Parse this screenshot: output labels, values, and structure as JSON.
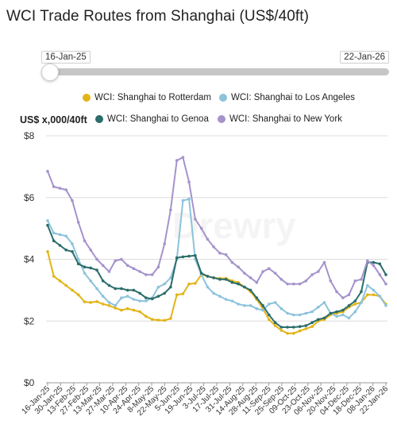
{
  "title": "WCI Trade Routes from Shanghai (US$/40ft)",
  "slider": {
    "start_label": "16-Jan-25",
    "end_label": "22-Jan-26"
  },
  "watermark": "Drewry",
  "chart_data": {
    "type": "line",
    "title": "WCI Trade Routes from Shanghai (US$/40ft)",
    "ylabel": "US$ x,000/40ft",
    "xlabel": "",
    "ylim": [
      0,
      8
    ],
    "yticks": [
      0,
      2,
      4,
      6,
      8
    ],
    "ytick_labels": [
      "$0",
      "$2",
      "$4",
      "$6",
      "$8"
    ],
    "grid": true,
    "legend": "top",
    "x_tick_labels": [
      "16-Jan-25",
      "30-Jan-25",
      "13-Feb-25",
      "27-Feb-25",
      "13-Mar-25",
      "27-Mar-25",
      "10-Apr-25",
      "24-Apr-25",
      "8-May-25",
      "22-May-25",
      "5-Jun-25",
      "19-Jun-25",
      "3-Jul-25",
      "17-Jul-25",
      "31-Jul-25",
      "14-Aug-25",
      "28-Aug-25",
      "11-Sep-25",
      "25-Sep-25",
      "09-Oct-25",
      "23-Oct-25",
      "06-Nov-25",
      "20-Nov-25",
      "04-Dec-25",
      "18-Dec-25",
      "08-Jan-26",
      "22-Jan-26"
    ],
    "series": [
      {
        "name": "WCI: Shanghai to Rotterdam",
        "color": "#e3b417",
        "values": [
          4.25,
          3.45,
          3.3,
          3.15,
          3.0,
          2.85,
          2.62,
          2.6,
          2.63,
          2.55,
          2.5,
          2.42,
          2.35,
          2.4,
          2.35,
          2.3,
          2.15,
          2.05,
          2.03,
          2.02,
          2.08,
          2.85,
          2.88,
          3.2,
          3.22,
          3.5,
          3.45,
          3.4,
          3.38,
          3.38,
          3.3,
          3.25,
          3.1,
          2.95,
          2.7,
          2.4,
          2.05,
          1.85,
          1.7,
          1.6,
          1.6,
          1.68,
          1.75,
          1.82,
          2.0,
          2.05,
          2.2,
          2.25,
          2.3,
          2.45,
          2.55,
          2.6,
          2.85,
          2.85,
          2.8,
          2.55
        ]
      },
      {
        "name": "WCI: Shanghai to Los Angeles",
        "color": "#8cc3db",
        "values": [
          5.25,
          4.85,
          4.8,
          4.75,
          4.5,
          4.0,
          3.55,
          3.3,
          3.05,
          2.8,
          2.6,
          2.5,
          2.75,
          2.8,
          2.7,
          2.65,
          2.65,
          2.75,
          3.1,
          3.2,
          3.4,
          4.0,
          5.9,
          5.95,
          4.0,
          3.5,
          3.1,
          2.9,
          2.8,
          2.7,
          2.65,
          2.55,
          2.5,
          2.5,
          2.4,
          2.35,
          2.55,
          2.6,
          2.4,
          2.25,
          2.2,
          2.2,
          2.25,
          2.3,
          2.45,
          2.6,
          2.25,
          2.15,
          2.2,
          2.1,
          2.3,
          2.6,
          3.15,
          3.0,
          2.8,
          2.5
        ]
      },
      {
        "name": "WCI: Shanghai to Genoa",
        "color": "#2a6d6a",
        "values": [
          5.1,
          4.6,
          4.45,
          4.3,
          4.25,
          3.85,
          3.75,
          3.72,
          3.65,
          3.3,
          3.15,
          3.05,
          3.05,
          3.0,
          3.0,
          2.9,
          2.75,
          2.72,
          2.8,
          2.9,
          3.1,
          4.05,
          4.08,
          4.1,
          4.12,
          3.55,
          3.45,
          3.4,
          3.35,
          3.35,
          3.25,
          3.2,
          3.1,
          3.0,
          2.75,
          2.5,
          2.2,
          1.95,
          1.8,
          1.8,
          1.8,
          1.82,
          1.85,
          1.95,
          2.05,
          2.1,
          2.25,
          2.3,
          2.35,
          2.5,
          2.65,
          2.95,
          3.9,
          3.9,
          3.85,
          3.5
        ]
      },
      {
        "name": "WCI: Shanghai to New York",
        "color": "#a593cc",
        "values": [
          6.85,
          6.35,
          6.3,
          6.25,
          5.9,
          5.2,
          4.6,
          4.3,
          4.0,
          3.8,
          3.6,
          3.95,
          4.0,
          3.8,
          3.7,
          3.6,
          3.5,
          3.5,
          3.75,
          4.5,
          5.6,
          7.2,
          7.3,
          6.5,
          5.3,
          5.0,
          4.65,
          4.4,
          4.2,
          4.15,
          3.9,
          3.75,
          3.55,
          3.4,
          3.25,
          3.6,
          3.7,
          3.55,
          3.35,
          3.2,
          3.2,
          3.2,
          3.3,
          3.5,
          3.6,
          3.9,
          3.3,
          2.95,
          2.75,
          2.85,
          3.3,
          3.35,
          3.95,
          3.8,
          3.5,
          3.2
        ]
      }
    ]
  }
}
